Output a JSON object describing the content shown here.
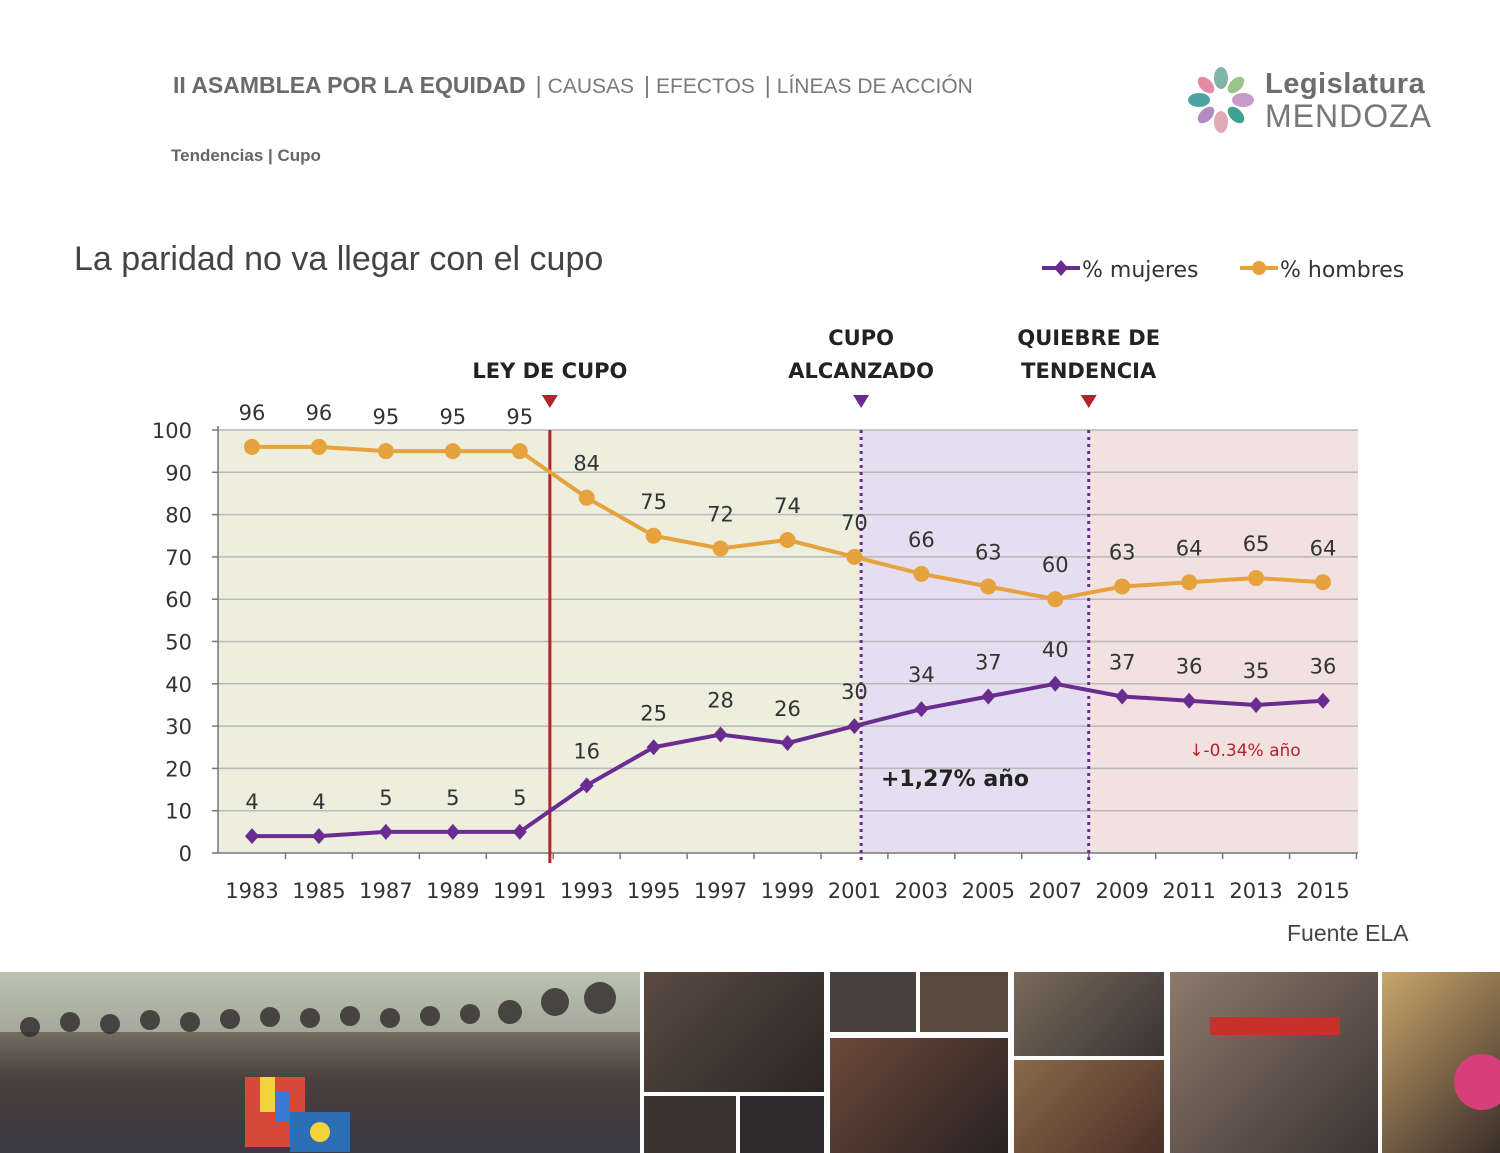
{
  "header": {
    "title": "II ASAMBLEA POR LA EQUIDAD",
    "links": [
      "CAUSAS",
      "EFECTOS",
      "LÍNEAS DE ACCIÓN"
    ],
    "separator": "|"
  },
  "subheader": "Tendencias | Cupo",
  "logo": {
    "line1": "Legislatura",
    "line2": "MENDOZA"
  },
  "chart_title": "La paridad no va llegar con el cupo",
  "source": "Fuente ELA",
  "colors": {
    "women": "#6a2c91",
    "men": "#e6a23c",
    "zone1": "#edeedd",
    "zone2": "#e4def0",
    "zone3": "#f1e1e1",
    "law_line": "#b3232b",
    "dotted_line": "#6a2c91"
  },
  "chart_data": {
    "type": "line",
    "x": [
      "1983",
      "1985",
      "1987",
      "1989",
      "1991",
      "1993",
      "1995",
      "1997",
      "1999",
      "2001",
      "2003",
      "2005",
      "2007",
      "2009",
      "2011",
      "2013",
      "2015"
    ],
    "series": [
      {
        "name": "% mujeres",
        "values": [
          4,
          4,
          5,
          5,
          5,
          16,
          25,
          28,
          26,
          30,
          34,
          37,
          40,
          37,
          36,
          35,
          36
        ]
      },
      {
        "name": "% hombres",
        "values": [
          96,
          96,
          95,
          95,
          95,
          84,
          75,
          72,
          74,
          70,
          66,
          63,
          60,
          63,
          64,
          65,
          64
        ]
      }
    ],
    "ylim": [
      0,
      100
    ],
    "yticks": [
      0,
      10,
      20,
      30,
      40,
      50,
      60,
      70,
      80,
      90,
      100
    ],
    "legend_position": "top-right",
    "grid": true,
    "markers": [
      {
        "label_lines": [
          "LEY DE CUPO"
        ],
        "year": 1991.9,
        "style": "solid"
      },
      {
        "label_lines": [
          "CUPO",
          "ALCANZADO"
        ],
        "year": 2001.2,
        "style": "dotted"
      },
      {
        "label_lines": [
          "QUIEBRE DE",
          "TENDENCIA"
        ],
        "year": 2008.0,
        "style": "dotted"
      }
    ],
    "annotations": [
      {
        "text": "+1,27% año"
      },
      {
        "text": "↓-0.34% año"
      }
    ]
  }
}
